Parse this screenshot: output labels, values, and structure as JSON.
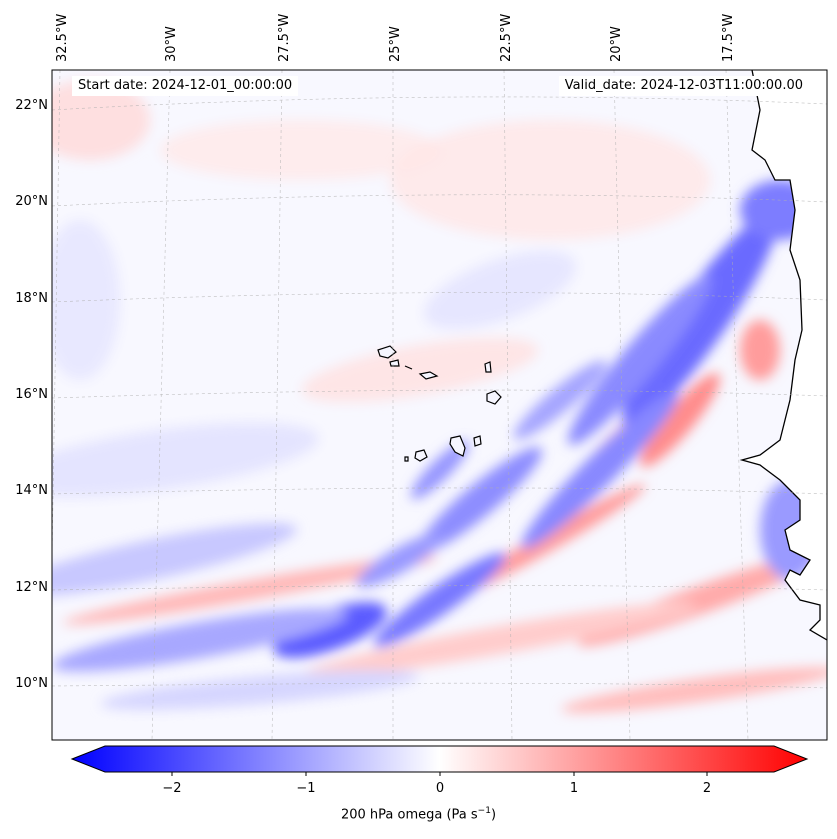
{
  "map": {
    "lon_labels": [
      "32.5°W",
      "30°W",
      "27.5°W",
      "25°W",
      "22.5°W",
      "20°W",
      "17.5°W"
    ],
    "lat_labels": [
      "22°N",
      "20°N",
      "18°N",
      "16°N",
      "14°N",
      "12°N",
      "10°N"
    ],
    "start_date": "Start date: 2024-12-01_00:00:00",
    "valid_date": "Valid_date: 2024-12-03T11:00:00.00"
  },
  "colorbar": {
    "ticks": [
      "−2",
      "−1",
      "0",
      "1",
      "2"
    ],
    "label": "200 hPa omega (Pa s",
    "label_exp": "−1",
    "label_close": ")",
    "range": [
      -2.7,
      2.7
    ],
    "colors": {
      "negative": "#0000ff",
      "zero": "#ffffff",
      "positive": "#ff0000"
    }
  }
}
